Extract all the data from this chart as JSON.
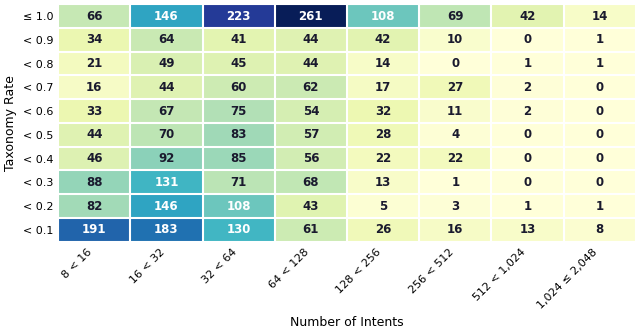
{
  "values": [
    [
      66,
      146,
      223,
      261,
      108,
      69,
      42,
      14
    ],
    [
      34,
      64,
      41,
      44,
      42,
      10,
      0,
      1
    ],
    [
      21,
      49,
      45,
      44,
      14,
      0,
      1,
      1
    ],
    [
      16,
      44,
      60,
      62,
      17,
      27,
      2,
      0
    ],
    [
      33,
      67,
      75,
      54,
      32,
      11,
      2,
      0
    ],
    [
      44,
      70,
      83,
      57,
      28,
      4,
      0,
      0
    ],
    [
      46,
      92,
      85,
      56,
      22,
      22,
      0,
      0
    ],
    [
      88,
      131,
      71,
      68,
      13,
      1,
      0,
      0
    ],
    [
      82,
      146,
      108,
      43,
      5,
      3,
      1,
      1
    ],
    [
      191,
      183,
      130,
      61,
      26,
      16,
      13,
      8
    ]
  ],
  "row_labels": [
    "≤ 1.0",
    "< 0.9",
    "< 0.8",
    "< 0.7",
    "< 0.6",
    "< 0.5",
    "< 0.4",
    "< 0.3",
    "< 0.2",
    "< 0.1"
  ],
  "col_labels": [
    "8 < 16",
    "16 < 32",
    "32 < 64",
    "64 < 128",
    "128 < 256",
    "256 < 512",
    "512 < 1,024",
    "1,024 ≤ 2,048"
  ],
  "xlabel": "Number of Intents",
  "ylabel": "Taxonomy Rate",
  "vmin": 0,
  "vmax": 261,
  "white_text_threshold": 100,
  "figsize": [
    6.4,
    3.33
  ],
  "dpi": 100,
  "cell_fontsize": 8.5,
  "label_fontsize": 9,
  "tick_fontsize": 8
}
